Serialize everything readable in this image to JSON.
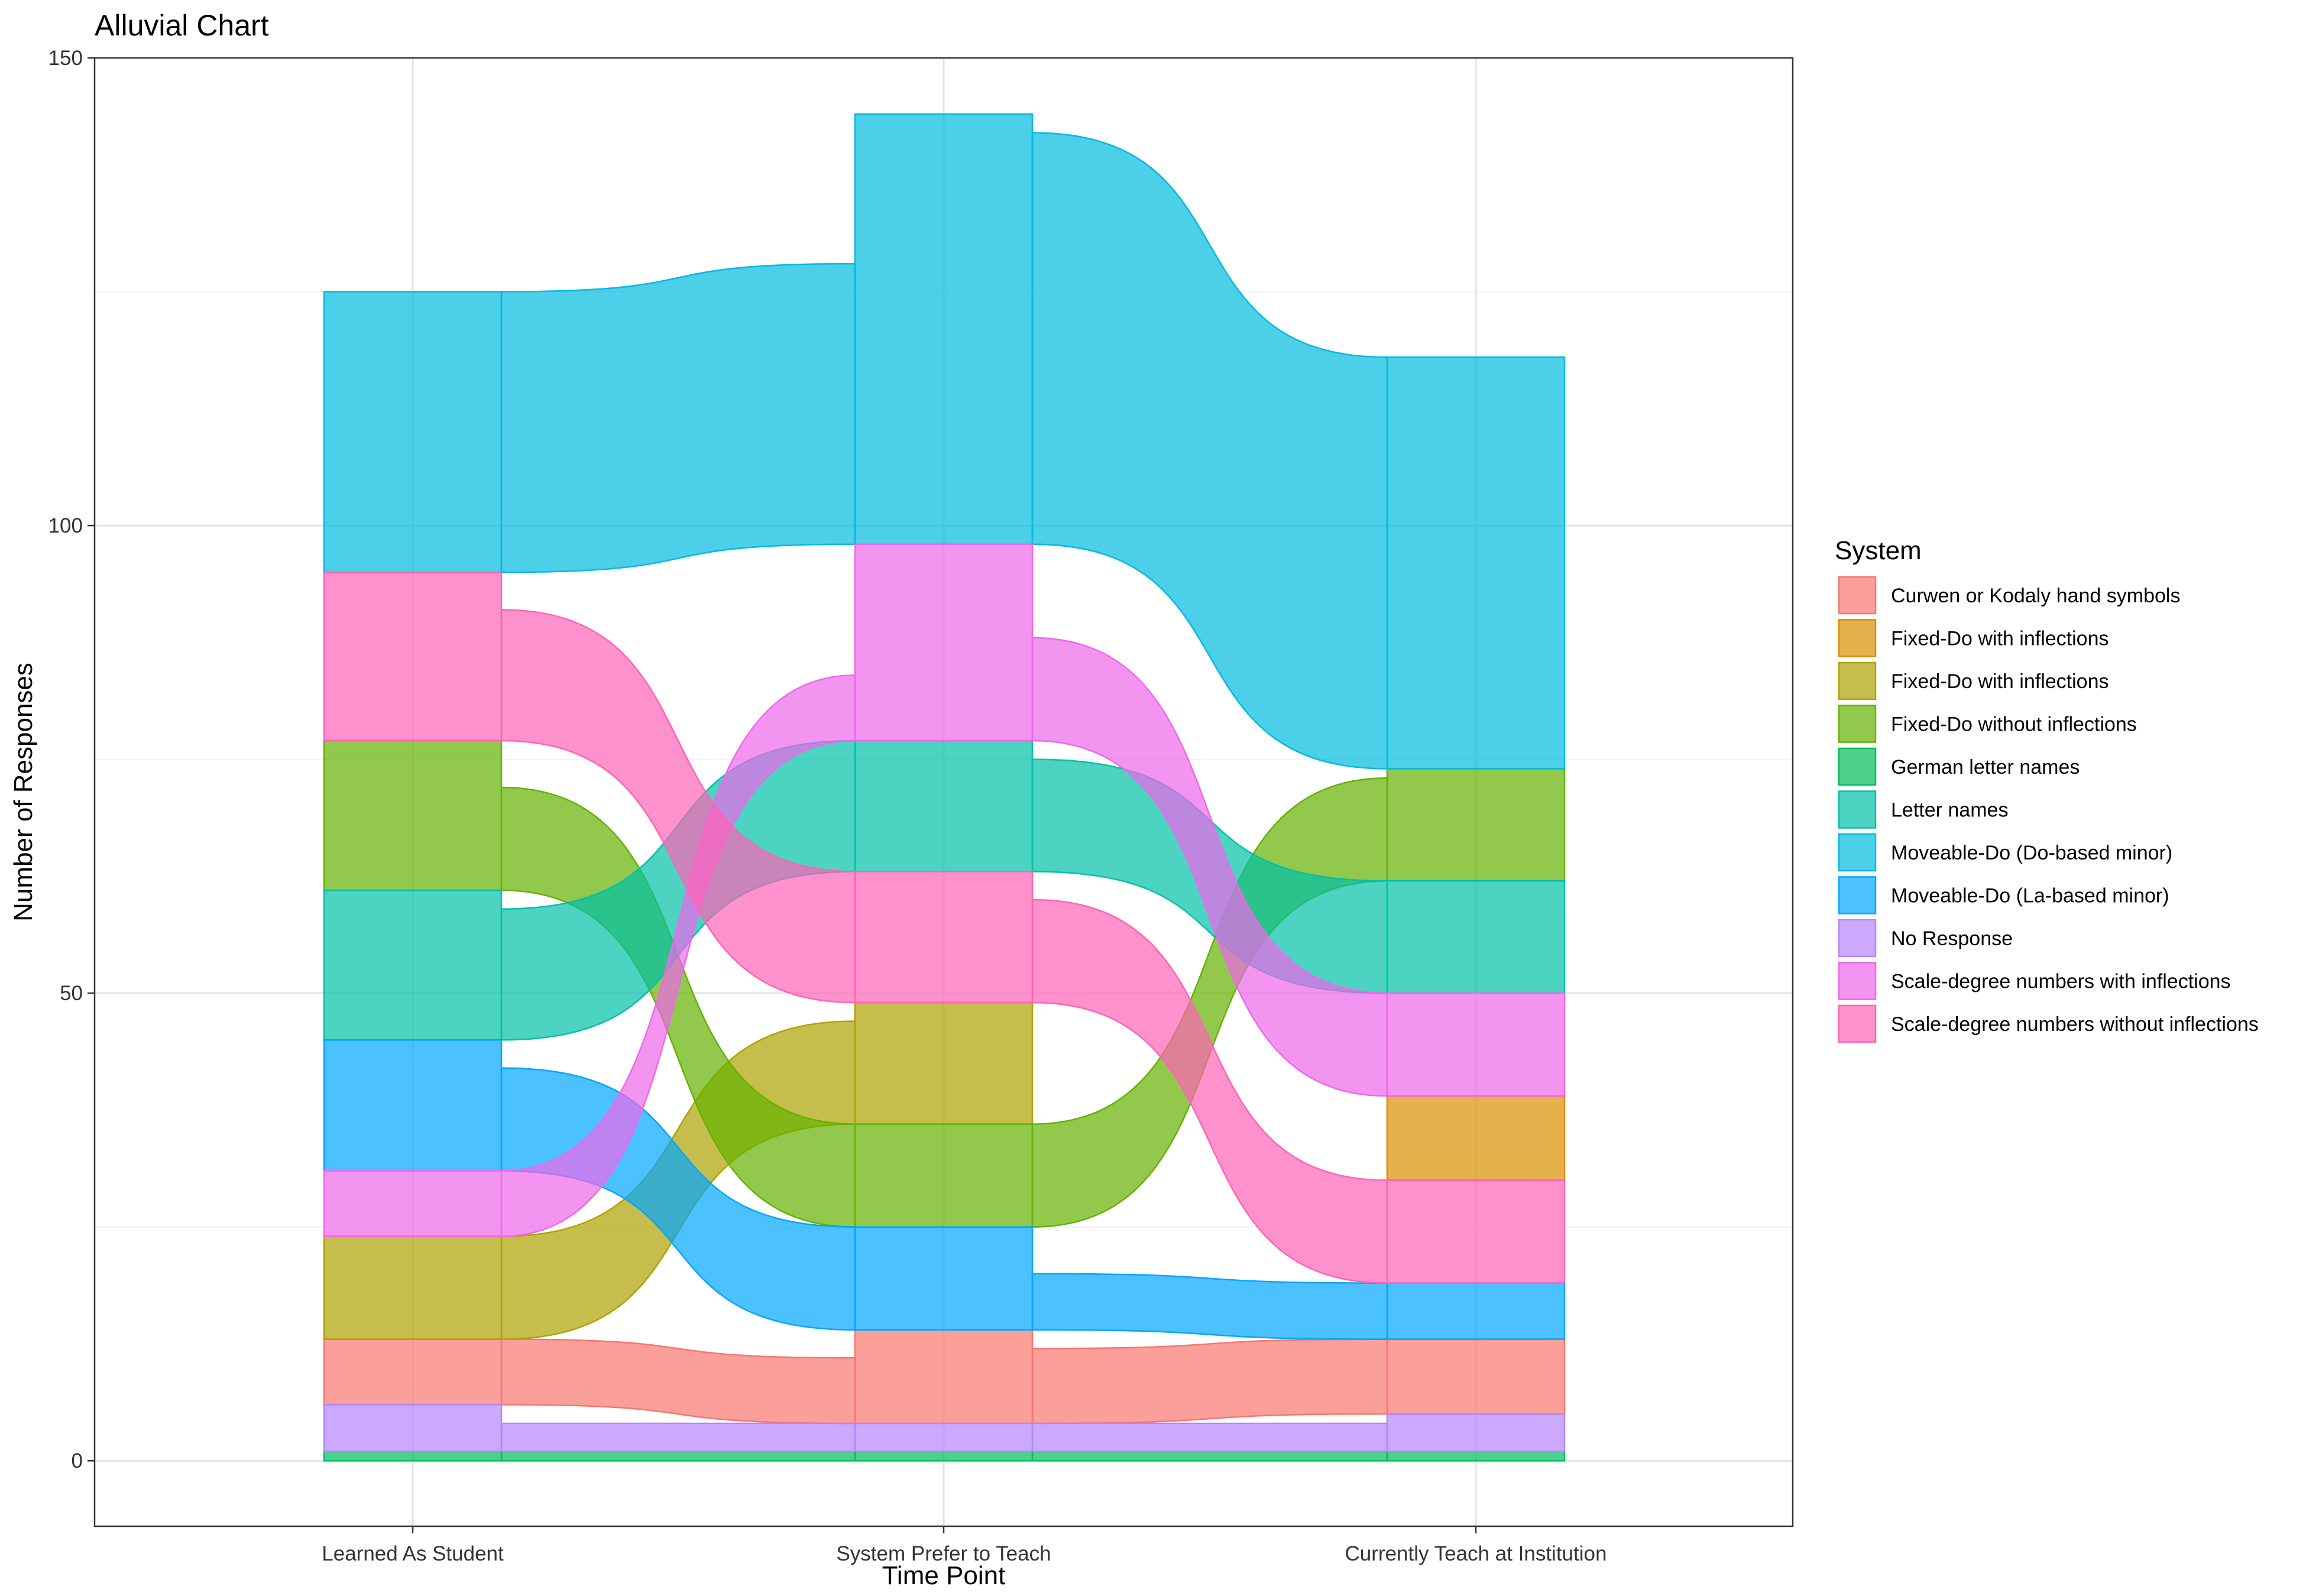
{
  "chart_data": {
    "type": "alluvial",
    "title": "Alluvial Chart",
    "xlabel": "Time Point",
    "ylabel": "Number of Responses",
    "ylim": [
      -7,
      150
    ],
    "yticks": [
      0,
      50,
      100,
      150
    ],
    "grid": true,
    "legend_position": "right",
    "legend_title": "System",
    "categories": [
      "Learned As Student",
      "System Prefer to Teach",
      "Currently Teach at Institution"
    ],
    "series": [
      {
        "name": "Curwen or Kodaly hand symbols",
        "color": "#F8766D",
        "stratum_order": [
          2,
          1,
          2
        ],
        "values": [
          7,
          10,
          8
        ]
      },
      {
        "name": "Fixed-Do with inflections",
        "color": "#DB8E00",
        "stratum_order": [
          null,
          null,
          7
        ],
        "values": [
          null,
          null,
          9
        ]
      },
      {
        "name": "Fixed-Do with inflections",
        "color": "#AEA200",
        "stratum_order": [
          3,
          4,
          null
        ],
        "values": [
          11,
          13,
          null
        ]
      },
      {
        "name": "Fixed-Do without inflections",
        "color": "#64B200",
        "stratum_order": [
          7,
          3,
          10
        ],
        "values": [
          16,
          11,
          12
        ]
      },
      {
        "name": "German letter names",
        "color": "#00BD5C",
        "stratum_order": [
          0,
          0,
          0
        ],
        "values": [
          1,
          1,
          1
        ]
      },
      {
        "name": "Letter names",
        "color": "#00C1A7",
        "stratum_order": [
          6,
          6,
          9
        ],
        "values": [
          16,
          14,
          12
        ]
      },
      {
        "name": "Moveable-Do (Do-based minor)",
        "color": "#00BADE",
        "stratum_order": [
          9,
          8,
          11
        ],
        "values": [
          30,
          46,
          44
        ]
      },
      {
        "name": "Moveable-Do (La-based minor)",
        "color": "#00A6FF",
        "stratum_order": [
          5,
          2,
          4
        ],
        "values": [
          14,
          11,
          6
        ]
      },
      {
        "name": "No Response",
        "color": "#B385FF",
        "stratum_order": [
          1,
          0,
          1
        ],
        "values": [
          5,
          3,
          4
        ]
      },
      {
        "name": "Scale-degree numbers with inflections",
        "color": "#EF67EB",
        "stratum_order": [
          4,
          7,
          8
        ],
        "values": [
          7,
          21,
          11
        ]
      },
      {
        "name": "Scale-degree numbers without inflections",
        "color": "#FF63B6",
        "stratum_order": [
          8,
          5,
          6
        ],
        "values": [
          18,
          14,
          11
        ]
      }
    ],
    "flows": [
      {
        "series": 0,
        "from": 0,
        "to": 1,
        "value": 7
      },
      {
        "series": 0,
        "from": 1,
        "to": 2,
        "value": 8
      },
      {
        "series": 2,
        "from": 0,
        "to": 1,
        "value": 11
      },
      {
        "series": 3,
        "from": 0,
        "to": 1,
        "value": 11
      },
      {
        "series": 3,
        "from": 1,
        "to": 2,
        "value": 11
      },
      {
        "series": 4,
        "from": 0,
        "to": 1,
        "value": 1
      },
      {
        "series": 4,
        "from": 1,
        "to": 2,
        "value": 1
      },
      {
        "series": 5,
        "from": 0,
        "to": 1,
        "value": 14
      },
      {
        "series": 5,
        "from": 1,
        "to": 2,
        "value": 12
      },
      {
        "series": 6,
        "from": 0,
        "to": 1,
        "value": 30
      },
      {
        "series": 6,
        "from": 1,
        "to": 2,
        "value": 44
      },
      {
        "series": 7,
        "from": 0,
        "to": 1,
        "value": 11
      },
      {
        "series": 7,
        "from": 1,
        "to": 2,
        "value": 6
      },
      {
        "series": 8,
        "from": 0,
        "to": 1,
        "value": 3
      },
      {
        "series": 8,
        "from": 1,
        "to": 2,
        "value": 3
      },
      {
        "series": 9,
        "from": 0,
        "to": 1,
        "value": 7
      },
      {
        "series": 9,
        "from": 1,
        "to": 2,
        "value": 11
      },
      {
        "series": 10,
        "from": 0,
        "to": 1,
        "value": 14
      },
      {
        "series": 10,
        "from": 1,
        "to": 2,
        "value": 11
      }
    ]
  }
}
